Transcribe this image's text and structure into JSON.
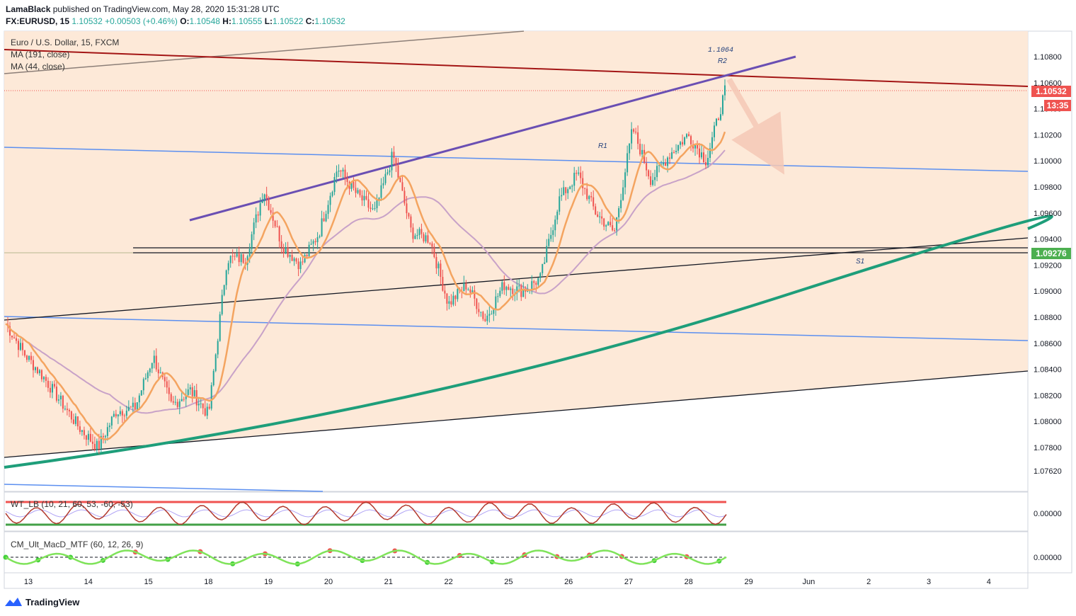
{
  "header": {
    "publisher": "LamaBlack",
    "published_text": "published on TradingView.com, May 28, 2020 15:31:28 UTC",
    "symbol": "FX:EURUSD, 15",
    "price": "1.10532",
    "change": "+0.00503 (+0.46%)",
    "o_label": "O:",
    "o_value": "1.10548",
    "h_label": "H:",
    "h_value": "1.10555",
    "l_label": "L:",
    "l_value": "1.10522",
    "c_label": "C:",
    "c_value": "1.10532"
  },
  "legend": {
    "instrument": "Euro / U.S. Dollar, 15, FXCM",
    "ma1": "MA (191, close)",
    "ma2": "MA (44, close)"
  },
  "indicators": {
    "wt": "WT_LB (10, 21, 60, 53, -60, -53)",
    "macd": "CM_Ult_MacD_MTF (60, 12, 26, 9)"
  },
  "price_boxes": {
    "last_price": "1.10532",
    "countdown": "13:35",
    "support_price": "1.09276"
  },
  "annotations": {
    "r2_value": "1.1064",
    "r2": "R2",
    "r1": "R1",
    "s1": "S1"
  },
  "footer": {
    "brand": "TradingView"
  },
  "colors": {
    "up": "#26a69a",
    "down": "#ef5350",
    "ma44": "#f4a460",
    "ma191": "#c8a2c8",
    "channel": "#6a4fb3",
    "resistance": "#a31515",
    "blue_line": "#5b8ff0",
    "green_curve": "#1e9e7a",
    "zone_fill": "#fde8d6",
    "last_price_bg": "#ef5350",
    "support_bg": "#4caf50"
  },
  "chart_data": {
    "type": "candlestick",
    "symbol": "EURUSD",
    "timeframe": "15",
    "y_ticks": [
      "1.10800",
      "1.10600",
      "1.10400",
      "1.10200",
      "1.10000",
      "1.09800",
      "1.09600",
      "1.09400",
      "1.09200",
      "1.09000",
      "1.08800",
      "1.08600",
      "1.08400",
      "1.08200",
      "1.08000",
      "1.07800",
      "1.07620"
    ],
    "x_ticks": [
      "13",
      "14",
      "15",
      "18",
      "19",
      "20",
      "21",
      "22",
      "25",
      "26",
      "27",
      "28",
      "29",
      "Jun",
      "2",
      "3",
      "4"
    ],
    "indicator_ticks": {
      "wt": "0.00000",
      "macd": "0.00000"
    },
    "price_path": [
      [
        "13",
        1.0875
      ],
      [
        "13",
        1.0852
      ],
      [
        "14",
        1.0835
      ],
      [
        "14",
        1.0815
      ],
      [
        "14",
        1.0795
      ],
      [
        "15",
        1.078
      ],
      [
        "15",
        1.0808
      ],
      [
        "15",
        1.081
      ],
      [
        "15",
        1.085
      ],
      [
        "18",
        1.0812
      ],
      [
        "18",
        1.0824
      ],
      [
        "18",
        1.0805
      ],
      [
        "19",
        1.0925
      ],
      [
        "19",
        1.0925
      ],
      [
        "19",
        1.0978
      ],
      [
        "20",
        1.0935
      ],
      [
        "20",
        1.092
      ],
      [
        "20",
        1.0945
      ],
      [
        "21",
        1.0995
      ],
      [
        "21",
        1.0975
      ],
      [
        "21",
        1.096
      ],
      [
        "21",
        1.1005
      ],
      [
        "22",
        1.0945
      ],
      [
        "22",
        1.094
      ],
      [
        "22",
        1.089
      ],
      [
        "25",
        1.0905
      ],
      [
        "25",
        1.0878
      ],
      [
        "25",
        1.0905
      ],
      [
        "26",
        1.09
      ],
      [
        "26",
        1.091
      ],
      [
        "26",
        1.097
      ],
      [
        "27",
        1.099
      ],
      [
        "27",
        1.096
      ],
      [
        "27",
        1.0945
      ],
      [
        "27",
        1.1025
      ],
      [
        "27",
        1.0985
      ],
      [
        "28",
        1.1005
      ],
      [
        "28",
        1.102
      ],
      [
        "28",
        1.1
      ],
      [
        "28",
        1.1053
      ]
    ],
    "ma44": "MA (44, close)",
    "ma191": "MA (191, close)",
    "levels": {
      "last": 1.10532,
      "support": 1.09276,
      "r2": 1.1064
    }
  }
}
